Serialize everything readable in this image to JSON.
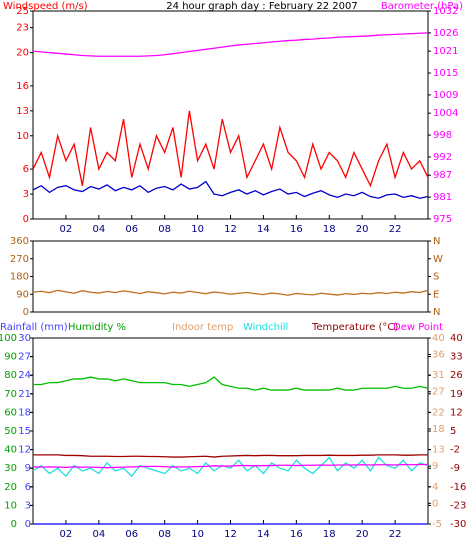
{
  "chart_data": [
    {
      "type": "line",
      "title": "24 hour graph day : February 22 2007",
      "ylabel": "Windspeed (m/s)",
      "y2label": "Barometer (hPa)",
      "ycolor": "#ff0000",
      "y2color": "#ff00ff",
      "x": [
        0,
        0.5,
        1,
        1.5,
        2,
        2.5,
        3,
        3.5,
        4,
        4.5,
        5,
        5.5,
        6,
        6.5,
        7,
        7.5,
        8,
        8.5,
        9,
        9.5,
        10,
        10.5,
        11,
        11.5,
        12,
        12.5,
        13,
        13.5,
        14,
        14.5,
        15,
        15.5,
        16,
        16.5,
        17,
        17.5,
        18,
        18.5,
        19,
        19.5,
        20,
        20.5,
        21,
        21.5,
        22,
        22.5,
        23,
        23.5,
        24
      ],
      "xlim": [
        0,
        24
      ],
      "xticks": [
        {
          "value": 2,
          "label": "02"
        },
        {
          "value": 4,
          "label": "04"
        },
        {
          "value": 6,
          "label": "06"
        },
        {
          "value": 8,
          "label": "08"
        },
        10,
        12,
        14,
        16,
        18,
        20,
        22
      ],
      "ylim": [
        0,
        25
      ],
      "yticks": [
        0,
        3,
        6,
        10,
        13,
        16,
        20,
        23,
        25
      ],
      "y2lim": [
        975,
        1032
      ],
      "y2ticks": [
        975,
        981,
        987,
        992,
        998,
        1004,
        1009,
        1015,
        1021,
        1026,
        1032
      ],
      "series": [
        {
          "color": "#ff0000",
          "values": [
            6,
            8,
            5,
            10,
            7,
            9,
            4,
            11,
            6,
            8,
            7,
            12,
            5,
            9,
            6,
            10,
            8,
            11,
            5,
            13,
            7,
            9,
            6,
            12,
            8,
            10,
            5,
            7,
            9,
            6,
            11,
            8,
            7,
            5,
            9,
            6,
            8,
            7,
            5,
            8,
            6,
            4,
            7,
            9,
            5,
            8,
            6,
            7,
            5
          ]
        },
        {
          "color": "#0000cc",
          "values": [
            3.5,
            4,
            3.2,
            3.8,
            4,
            3.5,
            3.3,
            3.9,
            3.6,
            4.1,
            3.4,
            3.8,
            3.5,
            4,
            3.2,
            3.7,
            3.9,
            3.5,
            4.2,
            3.6,
            3.8,
            4.5,
            3,
            2.8,
            3.2,
            3.5,
            3,
            3.4,
            2.9,
            3.3,
            3.6,
            3,
            3.2,
            2.7,
            3.1,
            3.4,
            2.9,
            2.6,
            3,
            2.8,
            3.2,
            2.7,
            2.5,
            2.9,
            3,
            2.6,
            2.8,
            2.5,
            2.7
          ]
        },
        {
          "color": "#ff00ff",
          "axis": "y2",
          "values": [
            1021,
            1020.8,
            1020.6,
            1020.4,
            1020.2,
            1020,
            1019.8,
            1019.7,
            1019.6,
            1019.6,
            1019.6,
            1019.6,
            1019.6,
            1019.6,
            1019.7,
            1019.8,
            1020,
            1020.3,
            1020.6,
            1020.9,
            1021.2,
            1021.5,
            1021.8,
            1022.1,
            1022.4,
            1022.7,
            1022.9,
            1023.1,
            1023.3,
            1023.5,
            1023.7,
            1023.9,
            1024,
            1024.2,
            1024.3,
            1024.5,
            1024.6,
            1024.8,
            1024.9,
            1025,
            1025.1,
            1025.2,
            1025.4,
            1025.5,
            1025.6,
            1025.7,
            1025.8,
            1025.9,
            1026
          ]
        }
      ]
    },
    {
      "type": "line",
      "ycolor": "#b06010",
      "y2color": "#b06010",
      "x": [
        0,
        0.5,
        1,
        1.5,
        2,
        2.5,
        3,
        3.5,
        4,
        4.5,
        5,
        5.5,
        6,
        6.5,
        7,
        7.5,
        8,
        8.5,
        9,
        9.5,
        10,
        10.5,
        11,
        11.5,
        12,
        12.5,
        13,
        13.5,
        14,
        14.5,
        15,
        15.5,
        16,
        16.5,
        17,
        17.5,
        18,
        18.5,
        19,
        19.5,
        20,
        20.5,
        21,
        21.5,
        22,
        22.5,
        23,
        23.5,
        24
      ],
      "xlim": [
        0,
        24
      ],
      "ylim": [
        0,
        360
      ],
      "yticks": [
        0,
        90,
        180,
        270,
        360
      ],
      "y2lim": [
        0,
        360
      ],
      "y2ticks": [
        {
          "value": 0,
          "label": "N"
        },
        {
          "value": 90,
          "label": "E"
        },
        {
          "value": 180,
          "label": "S"
        },
        {
          "value": 270,
          "label": "W"
        },
        {
          "value": 360,
          "label": "N"
        }
      ],
      "series": [
        {
          "color": "#c07020",
          "values": [
            100,
            105,
            98,
            110,
            102,
            95,
            108,
            100,
            96,
            104,
            99,
            107,
            101,
            94,
            103,
            98,
            92,
            100,
            96,
            105,
            99,
            93,
            101,
            97,
            90,
            95,
            99,
            93,
            88,
            96,
            92,
            85,
            94,
            90,
            87,
            95,
            91,
            86,
            93,
            89,
            95,
            92,
            98,
            94,
            100,
            96,
            103,
            99,
            110
          ]
        }
      ]
    },
    {
      "type": "line",
      "x": [
        0,
        0.5,
        1,
        1.5,
        2,
        2.5,
        3,
        3.5,
        4,
        4.5,
        5,
        5.5,
        6,
        6.5,
        7,
        7.5,
        8,
        8.5,
        9,
        9.5,
        10,
        10.5,
        11,
        11.5,
        12,
        12.5,
        13,
        13.5,
        14,
        14.5,
        15,
        15.5,
        16,
        16.5,
        17,
        17.5,
        18,
        18.5,
        19,
        19.5,
        20,
        20.5,
        21,
        21.5,
        22,
        22.5,
        23,
        23.5,
        24
      ],
      "xlim": [
        0,
        24
      ],
      "xticks": [
        {
          "value": 2,
          "label": "02"
        },
        {
          "value": 4,
          "label": "04"
        },
        {
          "value": 6,
          "label": "06"
        },
        {
          "value": 8,
          "label": "08"
        },
        10,
        12,
        14,
        16,
        18,
        20,
        22
      ],
      "axes": [
        {
          "label": "Rainfall (mm)",
          "color": "#4040ff",
          "lim": [
            0,
            30
          ],
          "ticks": [
            0,
            3,
            6,
            9,
            12,
            15,
            18,
            21,
            24,
            27,
            30
          ]
        },
        {
          "label": "Humidity %",
          "color": "#00a000",
          "lim": [
            0,
            100
          ],
          "ticks": [
            0,
            10,
            20,
            30,
            40,
            50,
            60,
            70,
            80,
            90,
            100
          ]
        },
        {
          "label": "Indoor temp",
          "color": "#e0a070",
          "lim": [
            -5,
            40
          ],
          "ticks": [
            -5,
            0,
            4,
            9,
            13,
            18,
            22,
            27,
            31,
            36,
            40
          ]
        },
        {
          "label": "Temperature (°C)",
          "color": "#900000",
          "lim": [
            -30,
            40
          ],
          "ticks": [
            -30,
            -23,
            -16,
            -9,
            -2,
            5,
            12,
            19,
            26,
            33,
            40
          ]
        }
      ],
      "series": [
        {
          "color": "#0000ff",
          "axis": 0,
          "values": [
            0,
            0,
            0,
            0,
            0,
            0,
            0,
            0,
            0,
            0,
            0,
            0,
            0,
            0,
            0,
            0,
            0,
            0,
            0,
            0,
            0,
            0,
            0,
            0,
            0,
            0,
            0,
            0,
            0,
            0,
            0,
            0,
            0,
            0,
            0,
            0,
            0,
            0,
            0,
            0,
            0,
            0,
            0,
            0,
            0,
            0,
            0,
            0,
            0
          ]
        },
        {
          "color": "#00c000",
          "axis": 1,
          "values": [
            75,
            75,
            76,
            76,
            77,
            78,
            78,
            79,
            78,
            78,
            77,
            78,
            77,
            76,
            76,
            76,
            76,
            75,
            75,
            74,
            75,
            76,
            79,
            75,
            74,
            73,
            73,
            72,
            73,
            72,
            72,
            72,
            73,
            72,
            72,
            72,
            72,
            73,
            72,
            72,
            73,
            73,
            73,
            73,
            74,
            73,
            73,
            74,
            73
          ]
        },
        {
          "name": "Windchill",
          "color": "#20e0e0",
          "axis": 3,
          "values": [
            -10,
            -8,
            -11,
            -9,
            -12,
            -8,
            -10,
            -9,
            -11,
            -7,
            -10,
            -9,
            -12,
            -8,
            -9,
            -10,
            -11,
            -8,
            -10,
            -9,
            -11,
            -7,
            -10,
            -8,
            -9,
            -6,
            -10,
            -8,
            -11,
            -7,
            -9,
            -10,
            -6,
            -9,
            -11,
            -8,
            -5,
            -10,
            -7,
            -9,
            -6,
            -10,
            -5,
            -8,
            -9,
            -6,
            -10,
            -7,
            -8
          ]
        },
        {
          "color": "#a00000",
          "axis": 3,
          "values": [
            -4,
            -4,
            -4,
            -4,
            -4.2,
            -4.2,
            -4.3,
            -4.5,
            -4.5,
            -4.5,
            -4.6,
            -4.6,
            -4.5,
            -4.5,
            -4.6,
            -4.6,
            -4.7,
            -4.8,
            -4.8,
            -4.7,
            -4.6,
            -4.5,
            -4.8,
            -4.5,
            -4.4,
            -4.3,
            -4.2,
            -4.3,
            -4.2,
            -4.2,
            -4.3,
            -4.3,
            -4.3,
            -4.2,
            -4.2,
            -4.2,
            -4.1,
            -4.2,
            -4.2,
            -4.2,
            -4.1,
            -4.1,
            -4,
            -4,
            -4,
            -4.1,
            -4.1,
            -4,
            -4
          ]
        },
        {
          "name": "Dew Point",
          "color": "#ff00ff",
          "axis": 3,
          "values": [
            -8.5,
            -8.6,
            -8.5,
            -8.6,
            -8.7,
            -8.5,
            -8.6,
            -8.6,
            -8.7,
            -8.8,
            -8.7,
            -8.6,
            -8.5,
            -8.4,
            -8.3,
            -8.3,
            -8.4,
            -8.6,
            -8.5,
            -8.5,
            -8.4,
            -8.3,
            -8.1,
            -8.2,
            -8.2,
            -8,
            -8,
            -8.1,
            -8,
            -8,
            -7.9,
            -7.9,
            -8,
            -7.9,
            -7.9,
            -7.8,
            -7.9,
            -7.8,
            -7.8,
            -7.8,
            -7.7,
            -7.8,
            -7.7,
            -7.7,
            -7.8,
            -7.6,
            -7.7,
            -7.6,
            -7.6
          ]
        }
      ]
    }
  ]
}
